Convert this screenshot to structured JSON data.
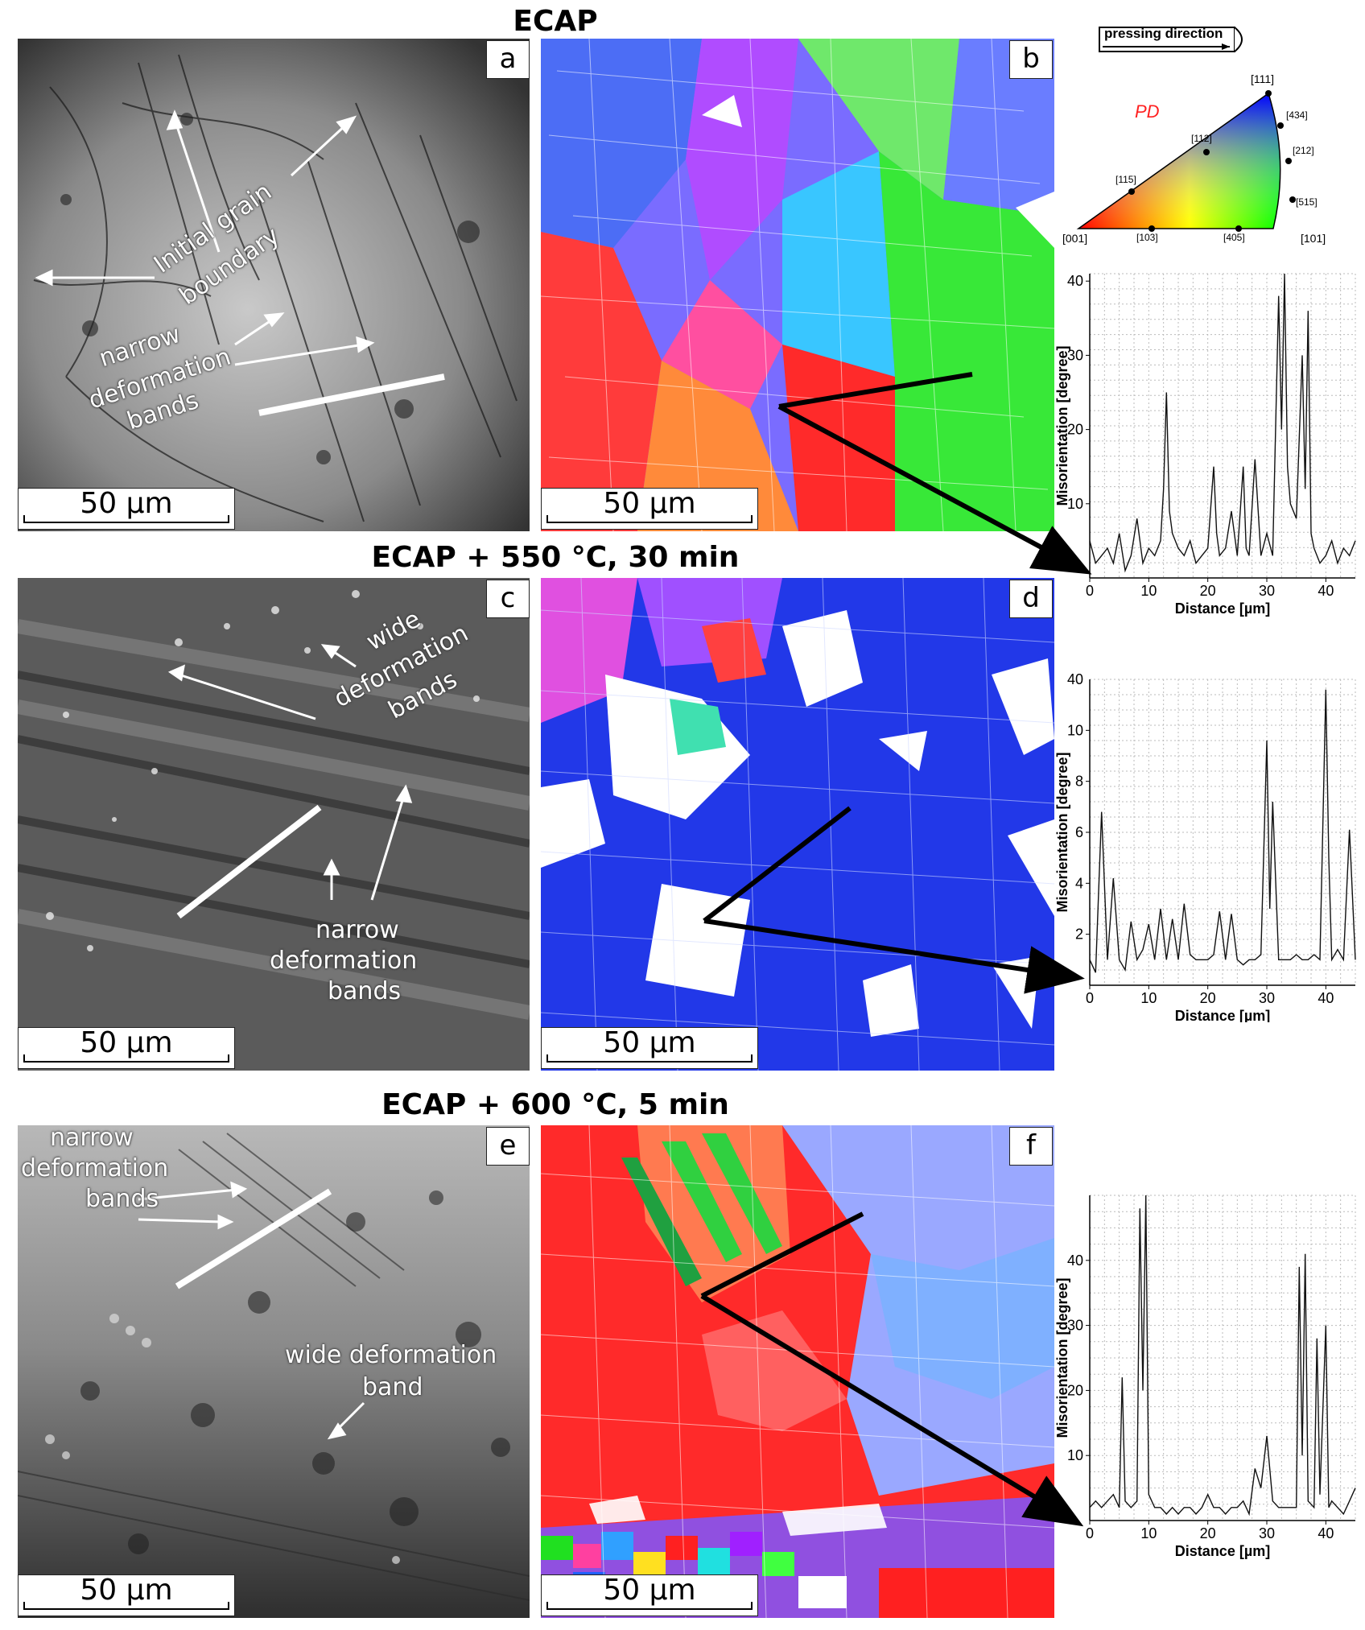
{
  "sections": [
    {
      "title": "ECAP"
    },
    {
      "title": "ECAP + 550 °C, 30 min"
    },
    {
      "title": "ECAP + 600 °C, 5 min"
    }
  ],
  "panels": {
    "a": {
      "letter": "a",
      "scale": "50 µm"
    },
    "b": {
      "letter": "b",
      "scale": "50 µm"
    },
    "c": {
      "letter": "c",
      "scale": "50 µm"
    },
    "d": {
      "letter": "d",
      "scale": "50 µm"
    },
    "e": {
      "letter": "e",
      "scale": "50 µm"
    },
    "f": {
      "letter": "f",
      "scale": "50 µm"
    }
  },
  "annotations": {
    "a_initial_1": "Initial grain",
    "a_initial_2": "boundary",
    "a_narrow_1": "narrow",
    "a_narrow_2": "deformation",
    "a_narrow_3": "bands",
    "c_wide_1": "wide",
    "c_wide_2": "deformation",
    "c_wide_3": "bands",
    "c_narrow_1": "narrow",
    "c_narrow_2": "deformation",
    "c_narrow_3": "bands",
    "e_narrow_1": "narrow",
    "e_narrow_2": "deformation",
    "e_narrow_3": "bands",
    "e_wide_1": "wide deformation",
    "e_wide_2": "band"
  },
  "legend": {
    "pressing_direction": "pressing direction",
    "pd": "PD",
    "poles": {
      "p111": "[111]",
      "p434": "[434]",
      "p112": "[112]",
      "p212": "[212]",
      "p115": "[115]",
      "p515": "[515]",
      "p001": "[001]",
      "p103": "[103]",
      "p405": "[405]",
      "p101": "[101]"
    },
    "colors": {
      "red": "#ff0000",
      "green": "#00ff00",
      "blue": "#0000ff"
    }
  },
  "chart_data": [
    {
      "type": "line",
      "xlabel": "Distance [µm]",
      "ylabel": "Misorientation [degree]",
      "xlim": [
        0,
        45
      ],
      "ylim": [
        0,
        41
      ],
      "xticks": [
        0,
        10,
        20,
        30,
        40
      ],
      "yticks": [
        10,
        20,
        30,
        40
      ],
      "grid": true,
      "x": [
        0,
        1,
        2,
        3,
        4,
        5,
        6,
        7,
        8,
        9,
        10,
        11,
        12,
        12.5,
        13,
        13.5,
        14,
        15,
        16,
        17,
        18,
        19,
        20,
        21,
        21.5,
        22,
        23,
        24,
        25,
        26,
        26.5,
        27,
        28,
        29,
        30,
        31,
        32,
        32.5,
        33,
        33.5,
        34,
        35,
        36,
        36.5,
        37,
        37.5,
        38,
        39,
        40,
        41,
        42,
        43,
        44,
        45
      ],
      "y": [
        5,
        2,
        3,
        4,
        2,
        6,
        1,
        3,
        8,
        2,
        4,
        3,
        5,
        12,
        25,
        9,
        6,
        4,
        3,
        5,
        2,
        3,
        4,
        15,
        6,
        3,
        4,
        9,
        3,
        15,
        4,
        3,
        16,
        3,
        6,
        3,
        38,
        20,
        41,
        15,
        10,
        8,
        30,
        12,
        36,
        6,
        4,
        2,
        3,
        5,
        2,
        4,
        3,
        5
      ]
    },
    {
      "type": "line",
      "xlabel": "Distance [µm]",
      "ylabel": "Misorientation [degree]",
      "xlim": [
        0,
        45
      ],
      "ylim": [
        0,
        12
      ],
      "xticks": [
        0,
        10,
        20,
        30,
        40
      ],
      "yticks": [
        2,
        4,
        6,
        8,
        10
      ],
      "yticks_extra": "40",
      "grid": true,
      "x": [
        0,
        1,
        2,
        3,
        4,
        5,
        6,
        7,
        8,
        9,
        10,
        11,
        12,
        13,
        14,
        15,
        16,
        17,
        18,
        19,
        20,
        21,
        22,
        23,
        24,
        25,
        26,
        27,
        28,
        29,
        30,
        30.5,
        31,
        32,
        33,
        34,
        35,
        36,
        37,
        38,
        39,
        40,
        40.5,
        41,
        42,
        43,
        44,
        45
      ],
      "y": [
        1,
        0.5,
        6.8,
        1,
        4.2,
        1,
        0.6,
        2.5,
        1,
        1.4,
        2.4,
        1,
        3,
        1,
        2.6,
        1,
        3.2,
        1.2,
        1,
        1,
        1,
        1.2,
        2.9,
        1,
        2.8,
        1,
        0.8,
        1,
        1,
        1.2,
        9.6,
        3,
        7.2,
        1,
        1,
        1,
        1.2,
        1,
        1,
        1.2,
        1,
        11.6,
        5,
        1,
        1.4,
        1,
        6.1,
        1
      ]
    },
    {
      "type": "line",
      "xlabel": "Distance [µm]",
      "ylabel": "Misorientation [degree]",
      "xlim": [
        0,
        45
      ],
      "ylim": [
        0,
        50
      ],
      "xticks": [
        0,
        10,
        20,
        30,
        40
      ],
      "yticks": [
        10,
        20,
        30,
        40
      ],
      "grid": true,
      "x": [
        0,
        1,
        2,
        3,
        4,
        5,
        5.5,
        6,
        7,
        8,
        8.5,
        9,
        9.5,
        10,
        11,
        12,
        13,
        14,
        15,
        16,
        17,
        18,
        19,
        20,
        21,
        22,
        23,
        24,
        25,
        26,
        27,
        28,
        29,
        30,
        31,
        32,
        33,
        34,
        35,
        35.5,
        36,
        36.5,
        37,
        38,
        38.5,
        39,
        40,
        40.5,
        41,
        42,
        43,
        44,
        45
      ],
      "y": [
        2,
        3,
        2,
        3,
        4,
        2,
        22,
        3,
        2,
        3,
        48,
        20,
        50,
        4,
        2,
        2,
        1,
        2,
        1,
        2,
        2,
        1,
        2,
        4,
        2,
        2,
        1,
        2,
        2,
        3,
        1,
        8,
        5,
        13,
        3,
        2,
        2,
        2,
        2,
        39,
        10,
        41,
        3,
        2,
        28,
        4,
        30,
        2,
        3,
        2,
        1,
        3,
        5
      ]
    }
  ]
}
